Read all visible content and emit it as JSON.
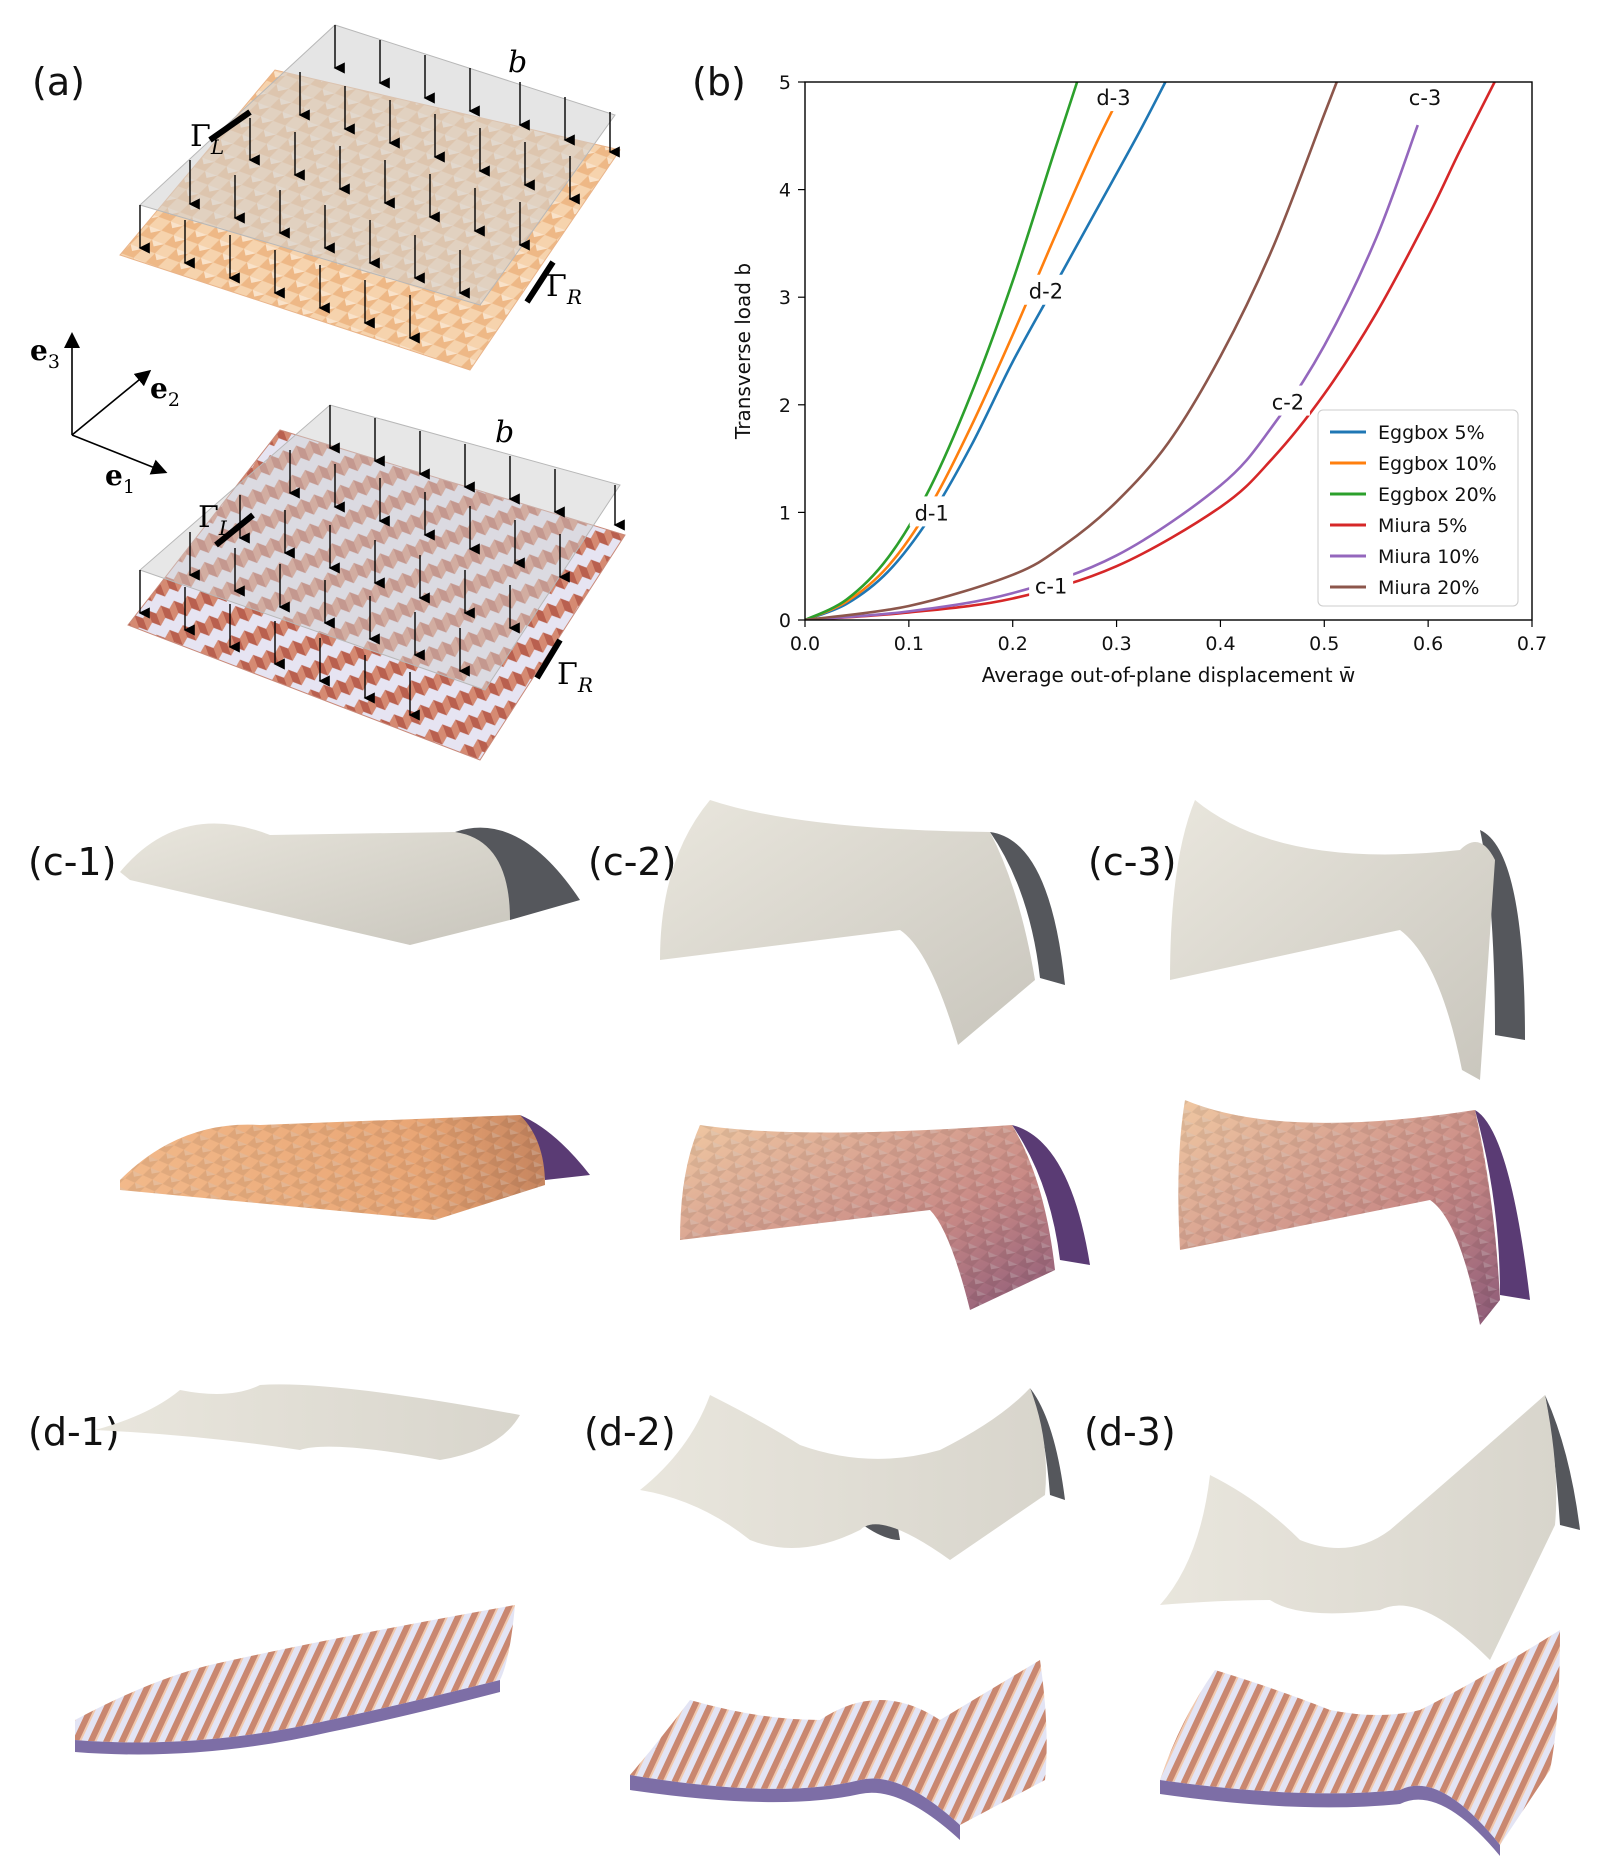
{
  "figure": {
    "panel_a": {
      "label": "(a)",
      "load_symbol": "b",
      "boundary_left": "Γ",
      "boundary_left_sub": "L",
      "boundary_right": "Γ",
      "boundary_right_sub": "R",
      "axes": {
        "e1": "e",
        "e1_sub": "1",
        "e2": "e",
        "e2_sub": "2",
        "e3": "e",
        "e3_sub": "3"
      }
    },
    "panel_b": {
      "label": "(b)"
    },
    "row_c": {
      "labels": [
        "(c-1)",
        "(c-2)",
        "(c-3)"
      ]
    },
    "row_d": {
      "labels": [
        "(d-1)",
        "(d-2)",
        "(d-3)"
      ]
    },
    "colors": {
      "eggbox_sheet": "#f2c89c",
      "miura_sheet": "#c47a66",
      "load_plane": "#d7d7d7",
      "shell_light": "#e6e3da",
      "shell_dark": "#55575c"
    }
  },
  "chart_data": {
    "type": "line",
    "title": "",
    "xlabel": "Average out-of-plane displacement w̄",
    "ylabel": "Transverse load b",
    "xlim": [
      0.0,
      0.7
    ],
    "ylim": [
      0,
      5
    ],
    "xticks": [
      0.0,
      0.1,
      0.2,
      0.3,
      0.4,
      0.5,
      0.6,
      0.7
    ],
    "xtick_labels": [
      "0.0",
      "0.1",
      "0.2",
      "0.3",
      "0.4",
      "0.5",
      "0.6",
      "0.7"
    ],
    "yticks": [
      0,
      1,
      2,
      3,
      4,
      5
    ],
    "ytick_labels": [
      "0",
      "1",
      "2",
      "3",
      "4",
      "5"
    ],
    "legend_position": "bottom-right",
    "series": [
      {
        "name": "Eggbox 5%",
        "color": "#1f77b4",
        "x": [
          0,
          0.04,
          0.08,
          0.12,
          0.16,
          0.2,
          0.24,
          0.28,
          0.32,
          0.347
        ],
        "y": [
          0,
          0.15,
          0.45,
          0.95,
          1.62,
          2.4,
          3.1,
          3.8,
          4.5,
          5.0
        ]
      },
      {
        "name": "Eggbox 10%",
        "color": "#ff7f0e",
        "x": [
          0,
          0.04,
          0.08,
          0.12,
          0.16,
          0.2,
          0.24,
          0.28,
          0.31
        ],
        "y": [
          0,
          0.17,
          0.5,
          1.05,
          1.8,
          2.65,
          3.55,
          4.42,
          5.0
        ]
      },
      {
        "name": "Eggbox 20%",
        "color": "#2ca02c",
        "x": [
          0,
          0.04,
          0.08,
          0.12,
          0.16,
          0.2,
          0.24,
          0.262
        ],
        "y": [
          0,
          0.19,
          0.58,
          1.22,
          2.1,
          3.15,
          4.35,
          5.0
        ]
      },
      {
        "name": "Miura 5%",
        "color": "#d62728",
        "x": [
          0,
          0.1,
          0.2,
          0.3,
          0.4,
          0.45,
          0.5,
          0.55,
          0.6,
          0.63,
          0.664
        ],
        "y": [
          0,
          0.07,
          0.2,
          0.5,
          1.05,
          1.5,
          2.1,
          2.85,
          3.75,
          4.35,
          5.0
        ]
      },
      {
        "name": "Miura 10%",
        "color": "#9467bd",
        "x": [
          0,
          0.1,
          0.2,
          0.3,
          0.4,
          0.45,
          0.5,
          0.55,
          0.59
        ],
        "y": [
          0,
          0.08,
          0.25,
          0.6,
          1.25,
          1.8,
          2.55,
          3.55,
          4.6
        ]
      },
      {
        "name": "Miura 20%",
        "color": "#8c564b",
        "x": [
          0,
          0.1,
          0.2,
          0.25,
          0.3,
          0.35,
          0.4,
          0.45,
          0.5,
          0.512
        ],
        "y": [
          0,
          0.13,
          0.42,
          0.7,
          1.1,
          1.65,
          2.45,
          3.45,
          4.7,
          5.0
        ]
      }
    ],
    "annotations": [
      {
        "text": "d-1",
        "x": 0.122,
        "y": 1.0
      },
      {
        "text": "d-2",
        "x": 0.232,
        "y": 3.06
      },
      {
        "text": "d-3",
        "x": 0.297,
        "y": 4.86
      },
      {
        "text": "c-1",
        "x": 0.237,
        "y": 0.32
      },
      {
        "text": "c-2",
        "x": 0.465,
        "y": 2.03
      },
      {
        "text": "c-3",
        "x": 0.597,
        "y": 4.86
      }
    ]
  }
}
